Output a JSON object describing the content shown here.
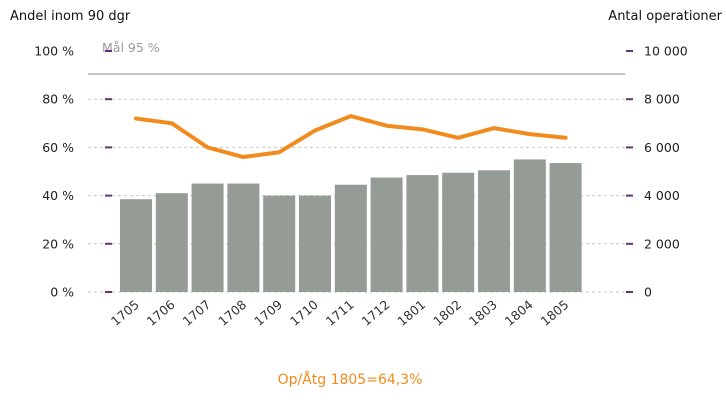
{
  "chart_data": {
    "type": "bar",
    "left_axis_title": "Andel inom 90 dgr",
    "right_axis_title": "Antal operationer",
    "categories": [
      "1705",
      "1706",
      "1707",
      "1708",
      "1709",
      "1710",
      "1711",
      "1712",
      "1801",
      "1802",
      "1803",
      "1804",
      "1805"
    ],
    "series": [
      {
        "name": "Antal operationer",
        "type": "bar",
        "axis": "right",
        "color": "#959b95",
        "values": [
          3850,
          4100,
          4500,
          4500,
          4000,
          4000,
          4450,
          4750,
          4850,
          4950,
          5050,
          5500,
          5350
        ]
      },
      {
        "name": "Andel inom 90 dgr",
        "type": "line",
        "axis": "left",
        "color": "#f28b1e",
        "values": [
          72,
          70,
          60,
          56,
          58,
          67,
          73,
          69,
          67.5,
          64,
          68,
          65.5,
          64
        ]
      }
    ],
    "left_axis": {
      "ylim": [
        0,
        100
      ],
      "ticks": [
        0,
        20,
        40,
        60,
        80,
        100
      ],
      "tick_labels": [
        "0 %",
        "20 %",
        "40 %",
        "60 %",
        "80 %",
        "100 %"
      ]
    },
    "right_axis": {
      "ylim": [
        0,
        10000
      ],
      "ticks": [
        0,
        2000,
        4000,
        6000,
        8000,
        10000
      ],
      "tick_labels": [
        "0",
        "2 000",
        "4 000",
        "6 000",
        "8 000",
        "10 000"
      ]
    },
    "goal_line": {
      "label": "Mål 95 %",
      "value": 95
    },
    "caption": "Op/Åtg 1805=64,3%",
    "colors": {
      "caption": "#f28b1e",
      "axis_marks": "#6b2f7a",
      "grid": "#c8c8c8",
      "goal_line": "#888888"
    }
  }
}
